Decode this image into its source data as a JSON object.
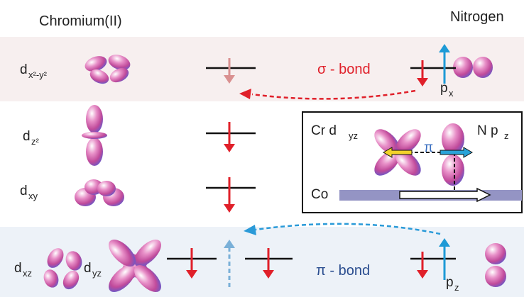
{
  "header": {
    "left": "Chromium(II)",
    "right": "Nitrogen"
  },
  "orbitals": [
    {
      "main": "d",
      "sub": "x²-y²"
    },
    {
      "main": "d",
      "sub": "z²"
    },
    {
      "main": "d",
      "sub": "xy"
    },
    {
      "main": "d",
      "sub": "xz"
    },
    {
      "main": "d",
      "sub": "yz"
    }
  ],
  "bonds": {
    "sigma": "σ - bond",
    "pi": "π - bond"
  },
  "nitrogen_orbitals": [
    {
      "main": "p",
      "sub": "x"
    },
    {
      "main": "p",
      "sub": "z"
    }
  ],
  "inset": {
    "cr": {
      "main": "Cr d",
      "sub": "yz"
    },
    "n": {
      "main": "N p",
      "sub": "z"
    },
    "pi": "π",
    "co": "Co"
  }
}
